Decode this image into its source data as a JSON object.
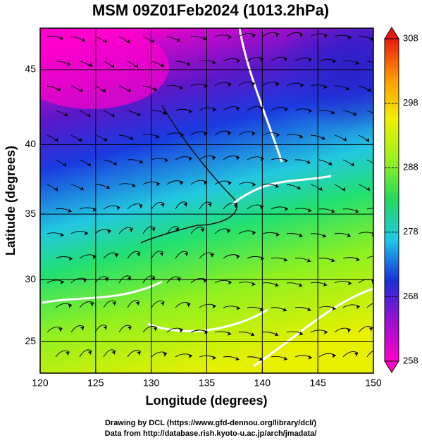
{
  "chart_data": {
    "type": "map",
    "title": "MSM 09Z01Feb2024 (1013.2hPa)",
    "x_label": "Longitude (degrees)",
    "y_label": "Latitude  (degrees)",
    "projection": "mercator",
    "xlim": [
      120,
      150
    ],
    "ylim": [
      22.4,
      47.6
    ],
    "xticks": [
      120,
      125,
      130,
      135,
      140,
      145,
      150
    ],
    "yticks": [
      25,
      30,
      35,
      40,
      45
    ],
    "grid": true,
    "colorbar": {
      "lim": [
        258,
        308
      ],
      "ticks": [
        258,
        268,
        278,
        288,
        298,
        308
      ],
      "colors": [
        "#ff00c8",
        "#9a10d0",
        "#1a2fd8",
        "#1fc8e8",
        "#22d860",
        "#9af020",
        "#f0f000",
        "#ff9a00",
        "#e81a10"
      ]
    },
    "credits": [
      "Drawing by DCL (https://www.gfd-dennou.org/library/dcl/)",
      "Data from http://database.rish.kyoto-u.ac.jp/arch/jmadata/"
    ]
  }
}
